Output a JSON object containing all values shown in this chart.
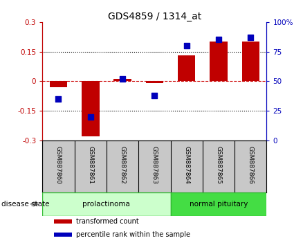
{
  "title": "GDS4859 / 1314_at",
  "samples": [
    "GSM887860",
    "GSM887861",
    "GSM887862",
    "GSM887863",
    "GSM887864",
    "GSM887865",
    "GSM887866"
  ],
  "transformed_count": [
    -0.03,
    -0.28,
    0.01,
    -0.01,
    0.13,
    0.2,
    0.2
  ],
  "percentile_rank": [
    35,
    20,
    52,
    38,
    80,
    85,
    87
  ],
  "ylim_left": [
    -0.3,
    0.3
  ],
  "ylim_right": [
    0,
    100
  ],
  "yticks_left": [
    -0.3,
    -0.15,
    0,
    0.15,
    0.3
  ],
  "yticks_right": [
    0,
    25,
    50,
    75,
    100
  ],
  "ytick_labels_left": [
    "-0.3",
    "-0.15",
    "0",
    "0.15",
    "0.3"
  ],
  "ytick_labels_right": [
    "0",
    "25",
    "50",
    "75",
    "100%"
  ],
  "bar_color": "#c00000",
  "dot_color": "#0000bb",
  "hline_color": "#cc0000",
  "disease_groups": [
    {
      "label": "prolactinoma",
      "indices": [
        0,
        1,
        2,
        3
      ],
      "color": "#ccffcc",
      "border_color": "#33bb33"
    },
    {
      "label": "normal pituitary",
      "indices": [
        4,
        5,
        6
      ],
      "color": "#44dd44",
      "border_color": "#33bb33"
    }
  ],
  "disease_state_label": "disease state",
  "legend_items": [
    {
      "label": "transformed count",
      "color": "#c00000"
    },
    {
      "label": "percentile rank within the sample",
      "color": "#0000bb"
    }
  ],
  "bar_width": 0.55,
  "dot_size": 28,
  "figsize": [
    4.38,
    3.54
  ],
  "dpi": 100,
  "label_bg": "#c8c8c8",
  "label_border": "#888888"
}
